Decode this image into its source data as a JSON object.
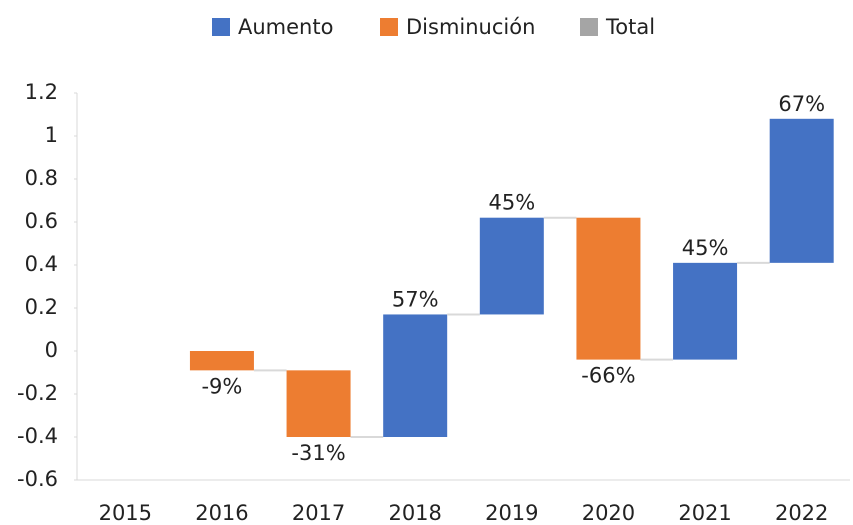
{
  "chart_data": {
    "type": "waterfall",
    "legend": [
      {
        "name": "Aumento",
        "color": "#4472c4"
      },
      {
        "name": "Disminución",
        "color": "#ed7d31"
      },
      {
        "name": "Total",
        "color": "#a5a5a5"
      }
    ],
    "categories": [
      "2015",
      "2016",
      "2017",
      "2018",
      "2019",
      "2020",
      "2021",
      "2022"
    ],
    "values": [
      null,
      -0.09,
      -0.31,
      0.57,
      0.45,
      -0.66,
      0.45,
      0.67
    ],
    "value_labels": [
      null,
      "-9%",
      "-31%",
      "57%",
      "45%",
      "-66%",
      "45%",
      "67%"
    ],
    "ylim": [
      -0.6,
      1.2
    ],
    "yticks": [
      1.2,
      1,
      0.8,
      0.6,
      0.4,
      0.2,
      0,
      -0.2,
      -0.4,
      -0.6
    ]
  }
}
